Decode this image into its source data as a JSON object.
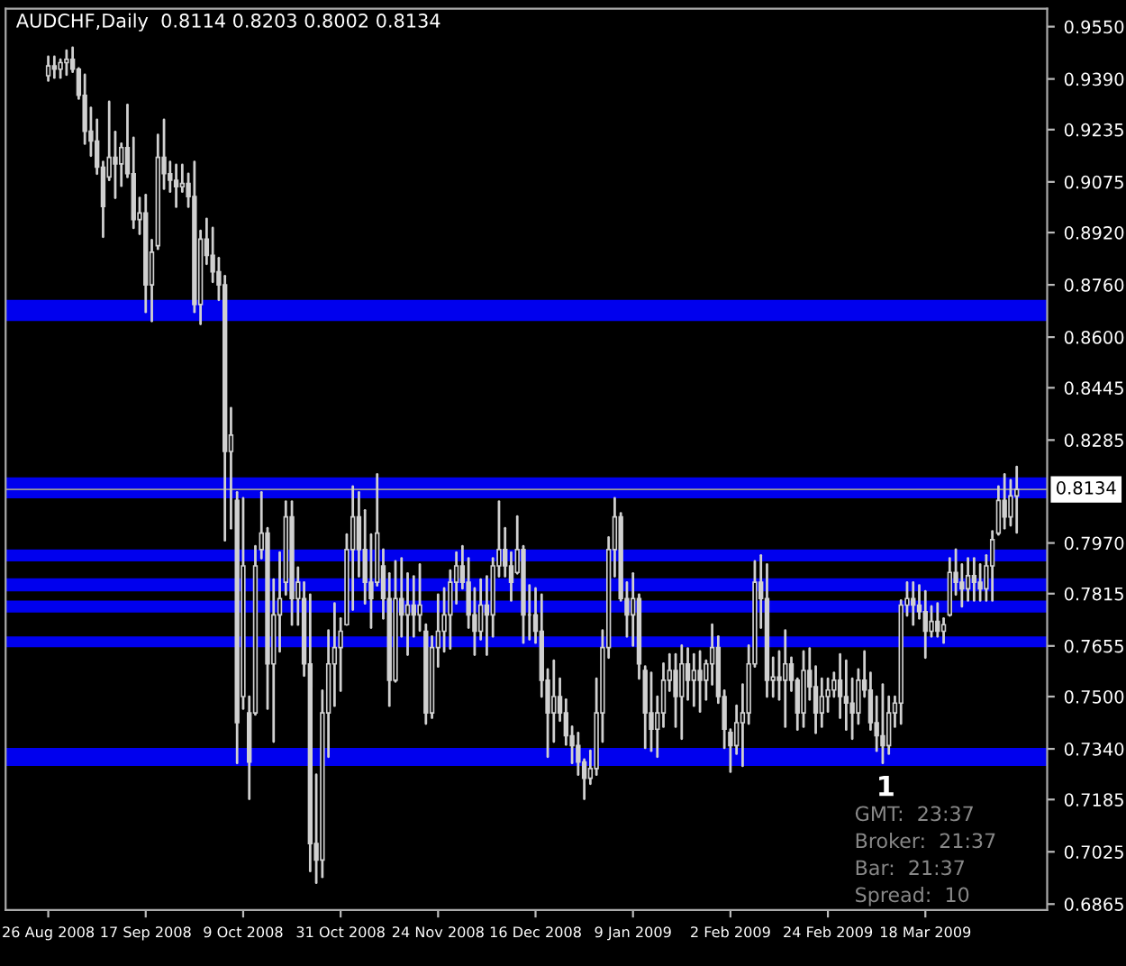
{
  "chart_data": {
    "type": "candlestick",
    "title": "AUDCHF,Daily  0.8114 0.8203 0.8002 0.8134",
    "categories": [
      "26 Aug 2008",
      null,
      null,
      null,
      null,
      null,
      null,
      null,
      null,
      null,
      null,
      null,
      null,
      null,
      null,
      null,
      "17 Sep 2008",
      null,
      null,
      null,
      null,
      null,
      null,
      null,
      null,
      null,
      null,
      null,
      null,
      null,
      null,
      null,
      "9 Oct 2008",
      null,
      null,
      null,
      null,
      null,
      null,
      null,
      null,
      null,
      null,
      null,
      null,
      null,
      null,
      null,
      "31 Oct 2008",
      null,
      null,
      null,
      null,
      null,
      null,
      null,
      null,
      null,
      null,
      null,
      null,
      null,
      null,
      null,
      "24 Nov 2008",
      null,
      null,
      null,
      null,
      null,
      null,
      null,
      null,
      null,
      null,
      null,
      null,
      null,
      null,
      null,
      "16 Dec 2008",
      null,
      null,
      null,
      null,
      null,
      null,
      null,
      null,
      null,
      null,
      null,
      null,
      null,
      null,
      null,
      "9 Jan 2009",
      null,
      null,
      null,
      null,
      null,
      null,
      null,
      null,
      null,
      null,
      null,
      null,
      null,
      null,
      null,
      "2 Feb 2009",
      null,
      null,
      null,
      null,
      null,
      null,
      null,
      null,
      null,
      null,
      null,
      null,
      null,
      null,
      null,
      "24 Feb 2009",
      null,
      null,
      null,
      null,
      null,
      null,
      null,
      null,
      null,
      null,
      null,
      null,
      null,
      null,
      null,
      "18 Mar 2009",
      null,
      null,
      null,
      null,
      null,
      null,
      null,
      null,
      null,
      null,
      null,
      null,
      null,
      null,
      null
    ],
    "ohlc": [
      [
        0.94,
        0.9458,
        0.9385,
        0.943
      ],
      [
        0.943,
        0.9458,
        0.9394,
        0.942
      ],
      [
        0.942,
        0.9449,
        0.9394,
        0.944
      ],
      [
        0.944,
        0.9477,
        0.9403,
        0.945
      ],
      [
        0.945,
        0.9486,
        0.9412,
        0.942
      ],
      [
        0.942,
        0.9422,
        0.933,
        0.934
      ],
      [
        0.934,
        0.9403,
        0.9192,
        0.923
      ],
      [
        0.923,
        0.9302,
        0.9155,
        0.92
      ],
      [
        0.92,
        0.9265,
        0.91,
        0.912
      ],
      [
        0.912,
        0.9136,
        0.8907,
        0.9
      ],
      [
        0.909,
        0.932,
        0.9081,
        0.915
      ],
      [
        0.915,
        0.9228,
        0.9026,
        0.913
      ],
      [
        0.913,
        0.9192,
        0.9063,
        0.918
      ],
      [
        0.918,
        0.9311,
        0.909,
        0.91
      ],
      [
        0.91,
        0.921,
        0.8934,
        0.896
      ],
      [
        0.896,
        0.9026,
        0.8916,
        0.898
      ],
      [
        0.898,
        0.9035,
        0.8677,
        0.876
      ],
      [
        0.876,
        0.8897,
        0.8649,
        0.886
      ],
      [
        0.888,
        0.9219,
        0.887,
        0.915
      ],
      [
        0.915,
        0.9265,
        0.9054,
        0.91
      ],
      [
        0.91,
        0.9136,
        0.9045,
        0.908
      ],
      [
        0.908,
        0.9127,
        0.8999,
        0.906
      ],
      [
        0.906,
        0.9127,
        0.9045,
        0.907
      ],
      [
        0.907,
        0.91,
        0.8999,
        0.903
      ],
      [
        0.903,
        0.9136,
        0.8677,
        0.87
      ],
      [
        0.87,
        0.8925,
        0.864,
        0.89
      ],
      [
        0.89,
        0.8962,
        0.8824,
        0.885
      ],
      [
        0.885,
        0.8934,
        0.8769,
        0.88
      ],
      [
        0.88,
        0.8842,
        0.8714,
        0.876
      ],
      [
        0.876,
        0.8787,
        0.7978,
        0.825
      ],
      [
        0.825,
        0.8383,
        0.8015,
        0.83
      ],
      [
        0.81,
        0.8125,
        0.7297,
        0.742
      ],
      [
        0.75,
        0.8107,
        0.7463,
        0.79
      ],
      [
        0.745,
        0.75,
        0.7187,
        0.73
      ],
      [
        0.745,
        0.796,
        0.7445,
        0.79
      ],
      [
        0.795,
        0.8125,
        0.7923,
        0.8
      ],
      [
        0.8,
        0.8015,
        0.7463,
        0.76
      ],
      [
        0.76,
        0.7858,
        0.7362,
        0.775
      ],
      [
        0.775,
        0.7941,
        0.7638,
        0.78
      ],
      [
        0.785,
        0.8097,
        0.7812,
        0.805
      ],
      [
        0.805,
        0.8097,
        0.772,
        0.78
      ],
      [
        0.78,
        0.7895,
        0.772,
        0.785
      ],
      [
        0.78,
        0.7849,
        0.7564,
        0.76
      ],
      [
        0.76,
        0.7812,
        0.6966,
        0.705
      ],
      [
        0.705,
        0.7261,
        0.693,
        0.7
      ],
      [
        0.7,
        0.7518,
        0.6948,
        0.745
      ],
      [
        0.745,
        0.7702,
        0.7316,
        0.76
      ],
      [
        0.76,
        0.7785,
        0.7472,
        0.765
      ],
      [
        0.765,
        0.7739,
        0.7518,
        0.77
      ],
      [
        0.772,
        0.7996,
        0.772,
        0.795
      ],
      [
        0.795,
        0.8143,
        0.7766,
        0.805
      ],
      [
        0.805,
        0.8125,
        0.7868,
        0.795
      ],
      [
        0.795,
        0.807,
        0.7785,
        0.785
      ],
      [
        0.785,
        0.7996,
        0.7711,
        0.78
      ],
      [
        0.785,
        0.818,
        0.784,
        0.8
      ],
      [
        0.79,
        0.795,
        0.7739,
        0.78
      ],
      [
        0.78,
        0.7877,
        0.7472,
        0.755
      ],
      [
        0.755,
        0.7914,
        0.7546,
        0.78
      ],
      [
        0.78,
        0.7923,
        0.7684,
        0.775
      ],
      [
        0.775,
        0.7877,
        0.7628,
        0.778
      ],
      [
        0.778,
        0.7868,
        0.7684,
        0.775
      ],
      [
        0.775,
        0.7904,
        0.7702,
        0.778
      ],
      [
        0.77,
        0.772,
        0.7417,
        0.745
      ],
      [
        0.745,
        0.7684,
        0.7435,
        0.765
      ],
      [
        0.765,
        0.7812,
        0.7592,
        0.77
      ],
      [
        0.77,
        0.7831,
        0.7638,
        0.775
      ],
      [
        0.775,
        0.7886,
        0.7647,
        0.785
      ],
      [
        0.785,
        0.7941,
        0.7785,
        0.79
      ],
      [
        0.79,
        0.796,
        0.7831,
        0.785
      ],
      [
        0.785,
        0.7923,
        0.7711,
        0.775
      ],
      [
        0.775,
        0.7831,
        0.7628,
        0.77
      ],
      [
        0.77,
        0.7858,
        0.7675,
        0.778
      ],
      [
        0.778,
        0.7868,
        0.7628,
        0.775
      ],
      [
        0.775,
        0.7923,
        0.7684,
        0.79
      ],
      [
        0.79,
        0.8097,
        0.7868,
        0.795
      ],
      [
        0.795,
        0.8015,
        0.7868,
        0.79
      ],
      [
        0.79,
        0.7941,
        0.7794,
        0.785
      ],
      [
        0.788,
        0.8051,
        0.7877,
        0.795
      ],
      [
        0.795,
        0.796,
        0.7665,
        0.775
      ],
      [
        0.775,
        0.784,
        0.7675,
        0.775
      ],
      [
        0.775,
        0.7831,
        0.7665,
        0.77
      ],
      [
        0.77,
        0.7812,
        0.75,
        0.755
      ],
      [
        0.755,
        0.7583,
        0.7316,
        0.745
      ],
      [
        0.745,
        0.761,
        0.7362,
        0.75
      ],
      [
        0.75,
        0.7555,
        0.7426,
        0.745
      ],
      [
        0.745,
        0.7491,
        0.7353,
        0.738
      ],
      [
        0.738,
        0.7408,
        0.7297,
        0.735
      ],
      [
        0.735,
        0.7389,
        0.7261,
        0.73
      ],
      [
        0.73,
        0.7307,
        0.7187,
        0.725
      ],
      [
        0.725,
        0.7334,
        0.7233,
        0.728
      ],
      [
        0.728,
        0.7555,
        0.7261,
        0.745
      ],
      [
        0.745,
        0.7702,
        0.7362,
        0.765
      ],
      [
        0.765,
        0.7987,
        0.7619,
        0.795
      ],
      [
        0.795,
        0.8107,
        0.7868,
        0.805
      ],
      [
        0.805,
        0.8061,
        0.7794,
        0.78
      ],
      [
        0.78,
        0.7849,
        0.7684,
        0.775
      ],
      [
        0.775,
        0.7877,
        0.7656,
        0.78
      ],
      [
        0.78,
        0.7812,
        0.7555,
        0.76
      ],
      [
        0.758,
        0.7592,
        0.7343,
        0.745
      ],
      [
        0.745,
        0.7573,
        0.7334,
        0.74
      ],
      [
        0.74,
        0.75,
        0.7316,
        0.745
      ],
      [
        0.745,
        0.7601,
        0.7408,
        0.755
      ],
      [
        0.755,
        0.7629,
        0.7518,
        0.758
      ],
      [
        0.758,
        0.7629,
        0.7408,
        0.75
      ],
      [
        0.75,
        0.7656,
        0.7371,
        0.76
      ],
      [
        0.76,
        0.7647,
        0.7491,
        0.755
      ],
      [
        0.755,
        0.7629,
        0.7472,
        0.758
      ],
      [
        0.758,
        0.7638,
        0.7454,
        0.755
      ],
      [
        0.755,
        0.761,
        0.7491,
        0.76
      ],
      [
        0.76,
        0.772,
        0.7537,
        0.765
      ],
      [
        0.765,
        0.7684,
        0.7481,
        0.75
      ],
      [
        0.75,
        0.7518,
        0.7343,
        0.74
      ],
      [
        0.739,
        0.7399,
        0.727,
        0.735
      ],
      [
        0.735,
        0.7472,
        0.7325,
        0.742
      ],
      [
        0.742,
        0.7537,
        0.7288,
        0.745
      ],
      [
        0.745,
        0.7656,
        0.7417,
        0.76
      ],
      [
        0.76,
        0.7914,
        0.7592,
        0.785
      ],
      [
        0.785,
        0.7932,
        0.7711,
        0.78
      ],
      [
        0.78,
        0.7904,
        0.75,
        0.755
      ],
      [
        0.755,
        0.7619,
        0.75,
        0.756
      ],
      [
        0.756,
        0.7638,
        0.7491,
        0.755
      ],
      [
        0.755,
        0.7702,
        0.7408,
        0.76
      ],
      [
        0.76,
        0.7619,
        0.7518,
        0.755
      ],
      [
        0.755,
        0.7555,
        0.7399,
        0.745
      ],
      [
        0.745,
        0.7638,
        0.7408,
        0.758
      ],
      [
        0.758,
        0.7647,
        0.7491,
        0.753
      ],
      [
        0.753,
        0.7592,
        0.7389,
        0.745
      ],
      [
        0.745,
        0.7555,
        0.7408,
        0.75
      ],
      [
        0.75,
        0.7555,
        0.7454,
        0.752
      ],
      [
        0.752,
        0.7573,
        0.75,
        0.755
      ],
      [
        0.755,
        0.7629,
        0.7435,
        0.75
      ],
      [
        0.75,
        0.761,
        0.7399,
        0.748
      ],
      [
        0.748,
        0.7555,
        0.7371,
        0.745
      ],
      [
        0.745,
        0.7583,
        0.7417,
        0.755
      ],
      [
        0.755,
        0.7638,
        0.75,
        0.752
      ],
      [
        0.752,
        0.7573,
        0.7399,
        0.742
      ],
      [
        0.742,
        0.75,
        0.7334,
        0.738
      ],
      [
        0.738,
        0.7537,
        0.7297,
        0.735
      ],
      [
        0.735,
        0.75,
        0.7325,
        0.745
      ],
      [
        0.745,
        0.75,
        0.7408,
        0.748
      ],
      [
        0.748,
        0.7794,
        0.7417,
        0.778
      ],
      [
        0.778,
        0.7849,
        0.7748,
        0.78
      ],
      [
        0.78,
        0.7849,
        0.772,
        0.778
      ],
      [
        0.778,
        0.784,
        0.7739,
        0.776
      ],
      [
        0.776,
        0.7822,
        0.7619,
        0.77
      ],
      [
        0.77,
        0.7776,
        0.7684,
        0.773
      ],
      [
        0.773,
        0.7785,
        0.7684,
        0.77
      ],
      [
        0.77,
        0.7739,
        0.7665,
        0.772
      ],
      [
        0.775,
        0.7923,
        0.7748,
        0.788
      ],
      [
        0.788,
        0.795,
        0.7812,
        0.785
      ],
      [
        0.785,
        0.7904,
        0.7776,
        0.783
      ],
      [
        0.783,
        0.7923,
        0.7794,
        0.787
      ],
      [
        0.787,
        0.7923,
        0.7794,
        0.785
      ],
      [
        0.785,
        0.7904,
        0.7794,
        0.783
      ],
      [
        0.783,
        0.7932,
        0.7794,
        0.79
      ],
      [
        0.79,
        0.8006,
        0.7794,
        0.798
      ],
      [
        0.8,
        0.8143,
        0.7996,
        0.81
      ],
      [
        0.81,
        0.818,
        0.8015,
        0.805
      ],
      [
        0.805,
        0.8162,
        0.8024,
        0.8114
      ],
      [
        0.8114,
        0.8203,
        0.8002,
        0.8134
      ]
    ],
    "ylim": [
      0.6847,
      0.9605
    ],
    "yticks": [
      {
        "value": 0.6865,
        "label": "0.6865"
      },
      {
        "value": 0.7025,
        "label": "0.7025"
      },
      {
        "value": 0.7185,
        "label": "0.7185"
      },
      {
        "value": 0.734,
        "label": "0.7340"
      },
      {
        "value": 0.75,
        "label": "0.7500"
      },
      {
        "value": 0.7655,
        "label": "0.7655"
      },
      {
        "value": 0.7815,
        "label": "0.7815"
      },
      {
        "value": 0.797,
        "label": "0.7970"
      },
      {
        "value": 0.8285,
        "label": "0.8285"
      },
      {
        "value": 0.8445,
        "label": "0.8445"
      },
      {
        "value": 0.86,
        "label": "0.8600"
      },
      {
        "value": 0.876,
        "label": "0.8760"
      },
      {
        "value": 0.892,
        "label": "0.8920"
      },
      {
        "value": 0.9075,
        "label": "0.9075"
      },
      {
        "value": 0.9235,
        "label": "0.9235"
      },
      {
        "value": 0.939,
        "label": "0.9390"
      },
      {
        "value": 0.955,
        "label": "0.9550"
      }
    ],
    "bands": [
      {
        "axis": "y",
        "from": 0.8649,
        "to": 0.8714,
        "color": "#0000ee"
      },
      {
        "axis": "y",
        "from": 0.8107,
        "to": 0.8171,
        "color": "#0000ee"
      },
      {
        "axis": "y",
        "from": 0.7288,
        "to": 0.7343,
        "color": "#0000ee"
      },
      {
        "axis": "y",
        "from": 0.7822,
        "to": 0.7862,
        "color": "#0000ee"
      },
      {
        "axis": "y",
        "from": 0.7651,
        "to": 0.7684,
        "color": "#0000ee"
      },
      {
        "axis": "y",
        "from": 0.7914,
        "to": 0.795,
        "color": "#0000ee"
      },
      {
        "axis": "y",
        "from": 0.7757,
        "to": 0.7794,
        "color": "#0000ee"
      }
    ],
    "ref_lines": [
      {
        "axis": "y",
        "value": 0.8134,
        "label": "0.8134"
      }
    ],
    "annotations": [
      "1",
      "GMT:  23:37",
      "Broker:  21:37",
      "Bar:  21:37",
      "Spread:  10"
    ]
  }
}
